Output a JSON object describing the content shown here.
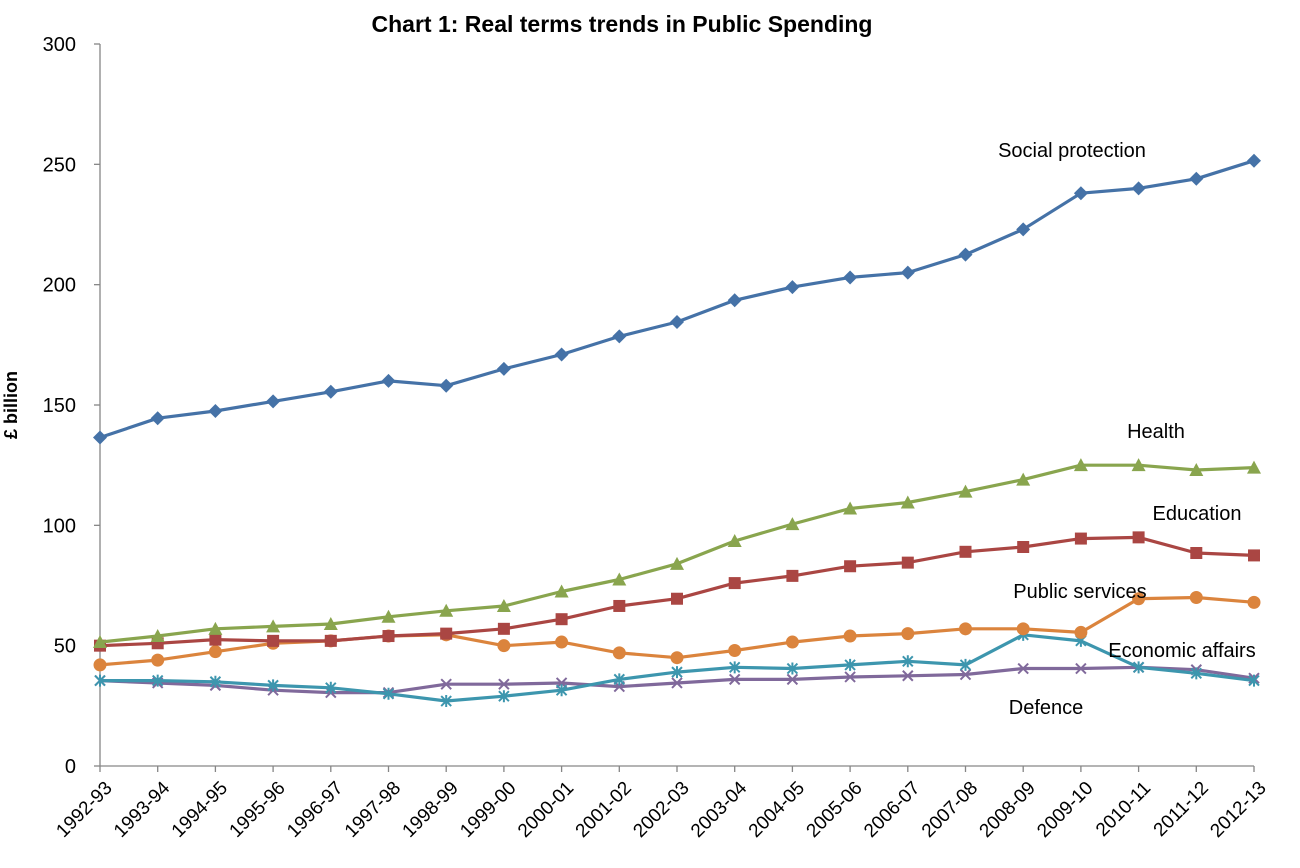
{
  "chart_data": {
    "type": "line",
    "title": "Chart 1: Real terms trends in Public Spending",
    "xlabel": "",
    "ylabel": "£ billion",
    "ylim": [
      0,
      300
    ],
    "yticks": [
      "0",
      "50",
      "100",
      "150",
      "200",
      "250",
      "300"
    ],
    "grid": false,
    "legend": "none",
    "categories": [
      "1992-93",
      "1993-94",
      "1994-95",
      "1995-96",
      "1996-97",
      "1997-98",
      "1998-99",
      "1999-00",
      "2000-01",
      "2001-02",
      "2002-03",
      "2003-04",
      "2004-05",
      "2005-06",
      "2006-07",
      "2007-08",
      "2008-09",
      "2009-10",
      "2010-11",
      "2011-12",
      "2012-13"
    ],
    "series": [
      {
        "name": "Social protection",
        "color": "#4572A7",
        "marker": "diamond",
        "values": [
          136.5,
          144.5,
          147.5,
          151.5,
          155.5,
          160,
          158,
          165,
          171,
          178.5,
          184.5,
          193.5,
          199,
          203,
          205,
          212.5,
          223,
          238,
          240,
          244,
          251.5
        ]
      },
      {
        "name": "Health",
        "color": "#89A54E",
        "marker": "triangle",
        "values": [
          51.5,
          54,
          57,
          58,
          59,
          62,
          64.5,
          66.5,
          72.5,
          77.5,
          84,
          93.5,
          100.5,
          107,
          109.5,
          114,
          119,
          125,
          125,
          123,
          124
        ]
      },
      {
        "name": "Education",
        "color": "#AA4643",
        "marker": "square",
        "values": [
          50,
          51,
          52.5,
          52,
          52,
          54,
          55,
          57,
          61,
          66.5,
          69.5,
          76,
          79,
          83,
          84.5,
          89,
          91,
          94.5,
          95,
          88.5,
          87.5
        ]
      },
      {
        "name": "Public services",
        "color": "#DB843D",
        "marker": "circle",
        "values": [
          42,
          44,
          47.5,
          51,
          52,
          54,
          54.5,
          50,
          51.5,
          47,
          45,
          48,
          51.5,
          54,
          55,
          57,
          57,
          55.5,
          69.5,
          70,
          68
        ]
      },
      {
        "name": "Economic affairs",
        "color": "#3D96AE",
        "marker": "star",
        "values": [
          35.5,
          35.5,
          35,
          33.5,
          32.5,
          30,
          27,
          29,
          31.5,
          36,
          39,
          41,
          40.5,
          42,
          43.5,
          42,
          54.5,
          52,
          41,
          38.5,
          35.5
        ]
      },
      {
        "name": "Defence",
        "color": "#80699B",
        "marker": "cross",
        "values": [
          35.5,
          34.5,
          33.5,
          31.5,
          30.5,
          30.5,
          34,
          34,
          34.5,
          33,
          34.5,
          36,
          36,
          37,
          37.5,
          38,
          40.5,
          40.5,
          41,
          40,
          36.5
        ]
      }
    ]
  }
}
